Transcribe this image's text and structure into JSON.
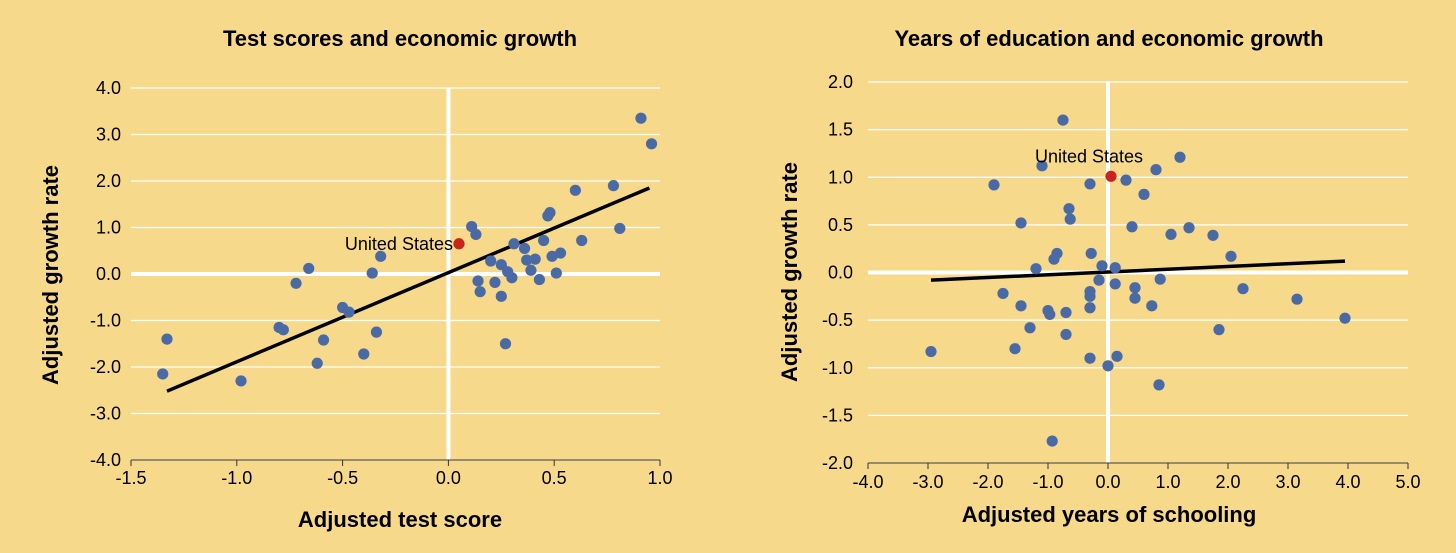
{
  "colors": {
    "background": "#f7d98c",
    "point": "#4a6aa5",
    "highlight": "#c8231e",
    "trend": "#000000",
    "grid": "#ffffff"
  },
  "chart_data": [
    {
      "type": "scatter",
      "title": "Test scores and economic growth",
      "xlabel": "Adjusted test score",
      "ylabel": "Adjusted growth rate",
      "xlim": [
        -1.5,
        1.0
      ],
      "ylim": [
        -4.0,
        4.0
      ],
      "x_ticks": [
        "-1.5",
        "-1.0",
        "-0.5",
        "0.0",
        "0.5",
        "1.0"
      ],
      "y_ticks": [
        "4.0",
        "3.0",
        "2.0",
        "1.0",
        "0.0",
        "-1.0",
        "-2.0",
        "-3.0",
        "-4.0"
      ],
      "grid": "horizontal",
      "points": [
        [
          -1.35,
          -2.15
        ],
        [
          -1.33,
          -1.4
        ],
        [
          -0.98,
          -2.3
        ],
        [
          -0.8,
          -1.15
        ],
        [
          -0.78,
          -1.2
        ],
        [
          -0.72,
          -0.2
        ],
        [
          -0.66,
          0.12
        ],
        [
          -0.62,
          -1.92
        ],
        [
          -0.59,
          -1.42
        ],
        [
          -0.5,
          -0.72
        ],
        [
          -0.47,
          -0.82
        ],
        [
          -0.4,
          -1.72
        ],
        [
          -0.36,
          0.02
        ],
        [
          -0.34,
          -1.25
        ],
        [
          -0.32,
          0.38
        ],
        [
          0.11,
          1.02
        ],
        [
          0.13,
          0.85
        ],
        [
          0.14,
          -0.15
        ],
        [
          0.15,
          -0.38
        ],
        [
          0.2,
          0.28
        ],
        [
          0.22,
          -0.18
        ],
        [
          0.25,
          -0.48
        ],
        [
          0.25,
          0.2
        ],
        [
          0.27,
          -1.5
        ],
        [
          0.28,
          0.05
        ],
        [
          0.3,
          -0.08
        ],
        [
          0.31,
          0.65
        ],
        [
          0.36,
          0.55
        ],
        [
          0.37,
          0.3
        ],
        [
          0.39,
          0.08
        ],
        [
          0.41,
          0.32
        ],
        [
          0.43,
          -0.12
        ],
        [
          0.45,
          0.72
        ],
        [
          0.47,
          1.25
        ],
        [
          0.48,
          1.32
        ],
        [
          0.49,
          0.38
        ],
        [
          0.51,
          0.02
        ],
        [
          0.53,
          0.45
        ],
        [
          0.6,
          1.8
        ],
        [
          0.63,
          0.72
        ],
        [
          0.78,
          1.9
        ],
        [
          0.81,
          0.98
        ],
        [
          0.91,
          3.35
        ],
        [
          0.96,
          2.8
        ]
      ],
      "highlight": {
        "label": "United States",
        "x": 0.05,
        "y": 0.65
      },
      "trend": {
        "x": [
          -1.33,
          0.95
        ],
        "y": [
          -2.52,
          1.85
        ]
      }
    },
    {
      "type": "scatter",
      "title": "Years of education and economic growth",
      "xlabel": "Adjusted years of schooling",
      "ylabel": "Adjusted growth rate",
      "xlim": [
        -4.0,
        5.0
      ],
      "ylim": [
        -2.0,
        2.0
      ],
      "x_ticks": [
        "-4.0",
        "-3.0",
        "-2.0",
        "-1.0",
        "0.0",
        "1.0",
        "2.0",
        "3.0",
        "4.0",
        "5.0"
      ],
      "y_ticks": [
        "2.0",
        "1.5",
        "1.0",
        "0.5",
        "0.0",
        "-0.5",
        "-1.0",
        "-1.5",
        "-2.0"
      ],
      "grid": "horizontal",
      "points": [
        [
          -2.95,
          -0.83
        ],
        [
          -1.9,
          0.92
        ],
        [
          -1.75,
          -0.22
        ],
        [
          -1.55,
          -0.8
        ],
        [
          -1.45,
          -0.35
        ],
        [
          -1.45,
          0.52
        ],
        [
          -1.3,
          -0.58
        ],
        [
          -1.2,
          0.04
        ],
        [
          -1.1,
          1.12
        ],
        [
          -1.0,
          -0.4
        ],
        [
          -0.97,
          -0.44
        ],
        [
          -0.93,
          -1.77
        ],
        [
          -0.9,
          0.14
        ],
        [
          -0.85,
          0.2
        ],
        [
          -0.75,
          1.6
        ],
        [
          -0.7,
          -0.42
        ],
        [
          -0.7,
          -0.65
        ],
        [
          -0.65,
          0.67
        ],
        [
          -0.63,
          0.56
        ],
        [
          -0.3,
          0.93
        ],
        [
          -0.3,
          -0.2
        ],
        [
          -0.3,
          -0.25
        ],
        [
          -0.3,
          -0.37
        ],
        [
          -0.3,
          -0.9
        ],
        [
          -0.28,
          0.2
        ],
        [
          -0.15,
          -0.08
        ],
        [
          -0.1,
          0.07
        ],
        [
          0.0,
          -0.98
        ],
        [
          0.12,
          0.05
        ],
        [
          0.12,
          -0.12
        ],
        [
          0.15,
          -0.88
        ],
        [
          0.3,
          0.97
        ],
        [
          0.4,
          0.48
        ],
        [
          0.45,
          -0.16
        ],
        [
          0.45,
          -0.27
        ],
        [
          0.6,
          0.82
        ],
        [
          0.73,
          -0.35
        ],
        [
          0.8,
          1.08
        ],
        [
          0.85,
          -1.18
        ],
        [
          0.87,
          -0.07
        ],
        [
          1.05,
          0.4
        ],
        [
          1.2,
          1.21
        ],
        [
          1.35,
          0.47
        ],
        [
          1.75,
          0.39
        ],
        [
          1.85,
          -0.6
        ],
        [
          2.05,
          0.17
        ],
        [
          2.25,
          -0.17
        ],
        [
          3.15,
          -0.28
        ],
        [
          3.95,
          -0.48
        ]
      ],
      "highlight": {
        "label": "United States",
        "x": 0.05,
        "y": 1.01
      },
      "trend": {
        "x": [
          -2.95,
          3.95
        ],
        "y": [
          -0.08,
          0.12
        ]
      }
    }
  ]
}
